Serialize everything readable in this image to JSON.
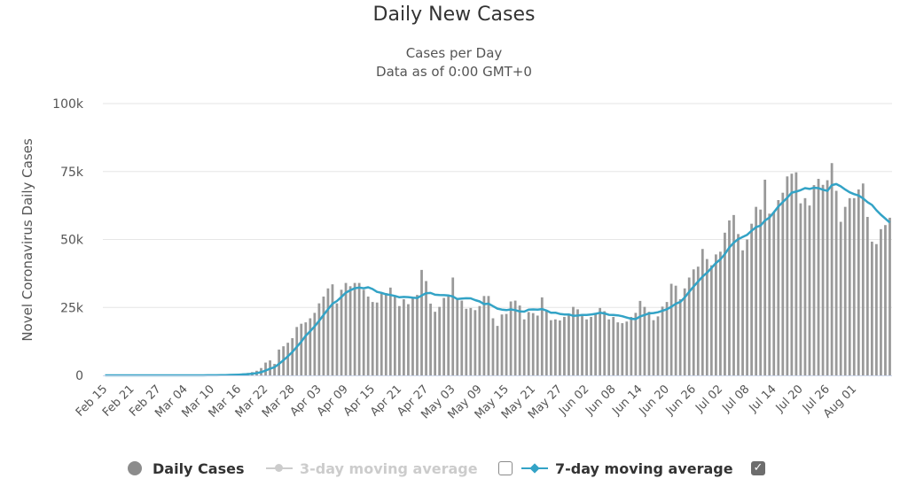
{
  "chart_data": {
    "type": "bar",
    "title": "Daily New Cases",
    "subtitle": [
      "Cases per Day",
      "Data as of 0:00 GMT+0"
    ],
    "xlabel": "",
    "ylabel": "Novel Coronavirus Daily Cases",
    "ylim": [
      0,
      100000
    ],
    "y_ticks": [
      0,
      25000,
      50000,
      75000,
      100000
    ],
    "y_tick_labels": [
      "0",
      "25k",
      "50k",
      "75k",
      "100k"
    ],
    "grid": true,
    "start_date": "Feb 15",
    "x_tick_labels": [
      "Feb 15",
      "Feb 21",
      "Feb 27",
      "Mar 04",
      "Mar 10",
      "Mar 16",
      "Mar 22",
      "Mar 28",
      "Apr 03",
      "Apr 09",
      "Apr 15",
      "Apr 21",
      "Apr 27",
      "May 03",
      "May 09",
      "May 15",
      "May 21",
      "May 27",
      "Jun 02",
      "Jun 08",
      "Jun 14",
      "Jun 20",
      "Jun 26",
      "Jul 02",
      "Jul 08",
      "Jul 14",
      "Jul 20",
      "Jul 26",
      "Aug 01"
    ],
    "x_tick_interval_days": 6,
    "series": [
      {
        "name": "Daily Cases",
        "type": "bar",
        "color": "#999999",
        "values": [
          0,
          0,
          0,
          0,
          0,
          0,
          0,
          0,
          0,
          0,
          0,
          0,
          0,
          0,
          0,
          0,
          0,
          0,
          20,
          10,
          20,
          20,
          30,
          50,
          60,
          100,
          200,
          300,
          300,
          400,
          500,
          700,
          900,
          1200,
          1700,
          2700,
          4700,
          5500,
          4200,
          9500,
          10700,
          12000,
          13700,
          17800,
          19000,
          19500,
          21000,
          23000,
          26500,
          29000,
          32000,
          33500,
          26500,
          31500,
          34000,
          32800,
          34000,
          34000,
          31500,
          29000,
          27000,
          26800,
          30200,
          30300,
          32300,
          29000,
          25500,
          28000,
          26200,
          28600,
          29600,
          38800,
          34700,
          26400,
          23400,
          25200,
          28500,
          29000,
          36000,
          28000,
          27500,
          24500,
          24800,
          24000,
          25500,
          29200,
          29200,
          21000,
          18200,
          22400,
          22600,
          27200,
          27500,
          25700,
          20600,
          23300,
          22900,
          22000,
          28700,
          23600,
          20300,
          20600,
          20200,
          21500,
          22000,
          25200,
          24300,
          21800,
          20600,
          21500,
          23000,
          24800,
          23600,
          20600,
          21500,
          19500,
          19200,
          19800,
          21500,
          23000,
          27400,
          25200,
          23400,
          20300,
          21700,
          25300,
          27000,
          33700,
          33000,
          28000,
          32000,
          36000,
          39000,
          40000,
          46500,
          42800,
          40500,
          44500,
          45500,
          52500,
          57000,
          59000,
          52000,
          46000,
          50000,
          55800,
          62000,
          61000,
          72000,
          59500,
          60000,
          64500,
          67200,
          73200,
          74200,
          74700,
          63300,
          65200,
          62500,
          70000,
          72300,
          70100,
          71800,
          78100,
          67900,
          56500,
          62000,
          65200,
          65200,
          68400,
          70600,
          58300,
          49200,
          48300,
          53800,
          55300,
          58000
        ]
      },
      {
        "name": "3-day moving average",
        "type": "line",
        "color": "#cccccc",
        "visible": false
      },
      {
        "name": "7-day moving average",
        "type": "line",
        "color": "#33a3c6",
        "visible": true
      }
    ]
  },
  "legend": {
    "items": [
      {
        "label": "Daily Cases",
        "enabled": true
      },
      {
        "label": "3-day moving average",
        "enabled": false
      },
      {
        "label": "7-day moving average",
        "enabled": true
      }
    ],
    "checkbox_3day_checked": false,
    "checkbox_7day_checked": true,
    "checkmark": "✓"
  },
  "colors": {
    "bar": "#999999",
    "line7": "#33a3c6",
    "line3": "#cccccc",
    "grid": "#e6e6e6",
    "axis": "#ccd6eb"
  }
}
